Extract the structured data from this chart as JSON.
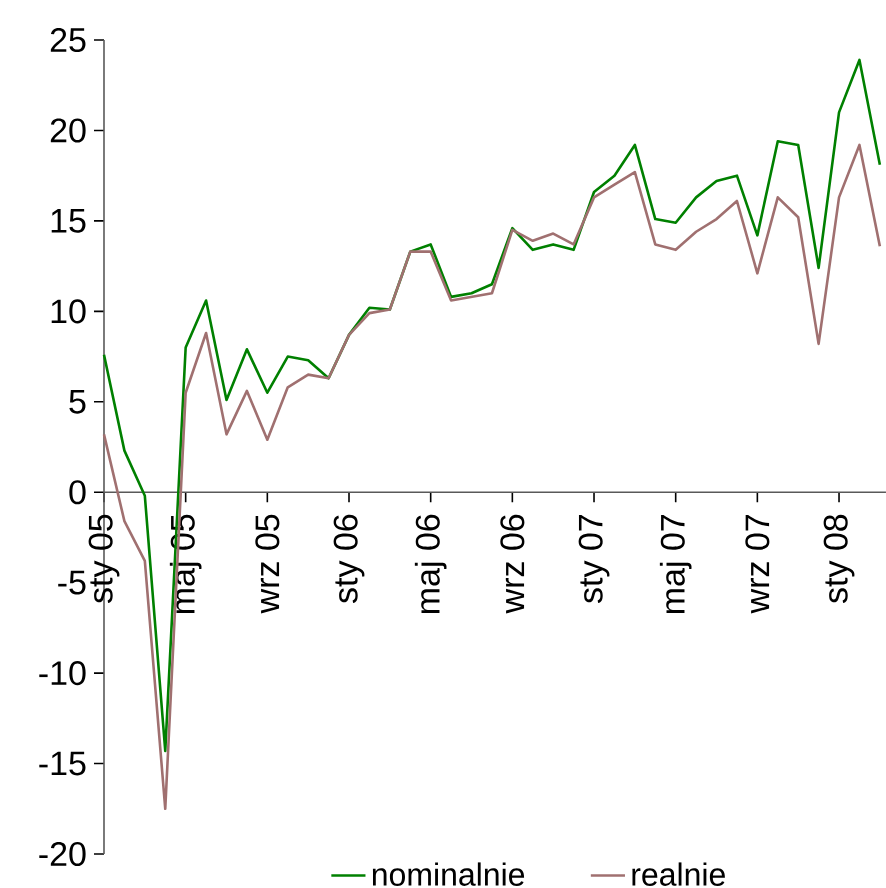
{
  "chart_data": {
    "type": "line",
    "categories": [
      "sty 05",
      null,
      null,
      null,
      "maj 05",
      null,
      null,
      null,
      "wrz 05",
      null,
      null,
      null,
      "sty 06",
      null,
      null,
      null,
      "maj 06",
      null,
      null,
      null,
      "wrz 06",
      null,
      null,
      null,
      "sty 07",
      null,
      null,
      null,
      "maj 07",
      null,
      null,
      null,
      "wrz 07",
      null,
      null,
      null,
      "sty 08",
      null,
      null
    ],
    "series": [
      {
        "name": "nominalnie",
        "color": "#008000",
        "values": [
          7.6,
          2.3,
          -0.2,
          -14.3,
          8.0,
          10.6,
          5.1,
          7.9,
          5.5,
          7.5,
          7.3,
          6.3,
          8.7,
          10.2,
          10.1,
          13.3,
          13.7,
          10.8,
          11.0,
          11.5,
          14.6,
          13.4,
          13.7,
          13.4,
          16.6,
          17.5,
          19.2,
          15.1,
          14.9,
          16.3,
          17.2,
          17.5,
          14.2,
          19.4,
          19.2,
          12.4,
          21.0,
          23.9,
          18.1
        ]
      },
      {
        "name": "realnie",
        "color": "#a07070",
        "values": [
          3.2,
          -1.6,
          -3.8,
          -17.5,
          5.5,
          8.8,
          3.2,
          5.6,
          2.9,
          5.8,
          6.5,
          6.3,
          8.7,
          9.9,
          10.1,
          13.3,
          13.3,
          10.6,
          10.8,
          11.0,
          14.5,
          13.9,
          14.3,
          13.7,
          16.3,
          17.0,
          17.7,
          13.7,
          13.4,
          14.4,
          15.1,
          16.1,
          12.1,
          16.3,
          15.2,
          8.2,
          16.3,
          19.2,
          13.6
        ]
      }
    ],
    "ylim": [
      -20,
      25
    ],
    "yticks": [
      -20,
      -15,
      -10,
      -5,
      0,
      5,
      10,
      15,
      20,
      25
    ],
    "legend": "bottom",
    "marker": "none",
    "line_style": "solid"
  }
}
